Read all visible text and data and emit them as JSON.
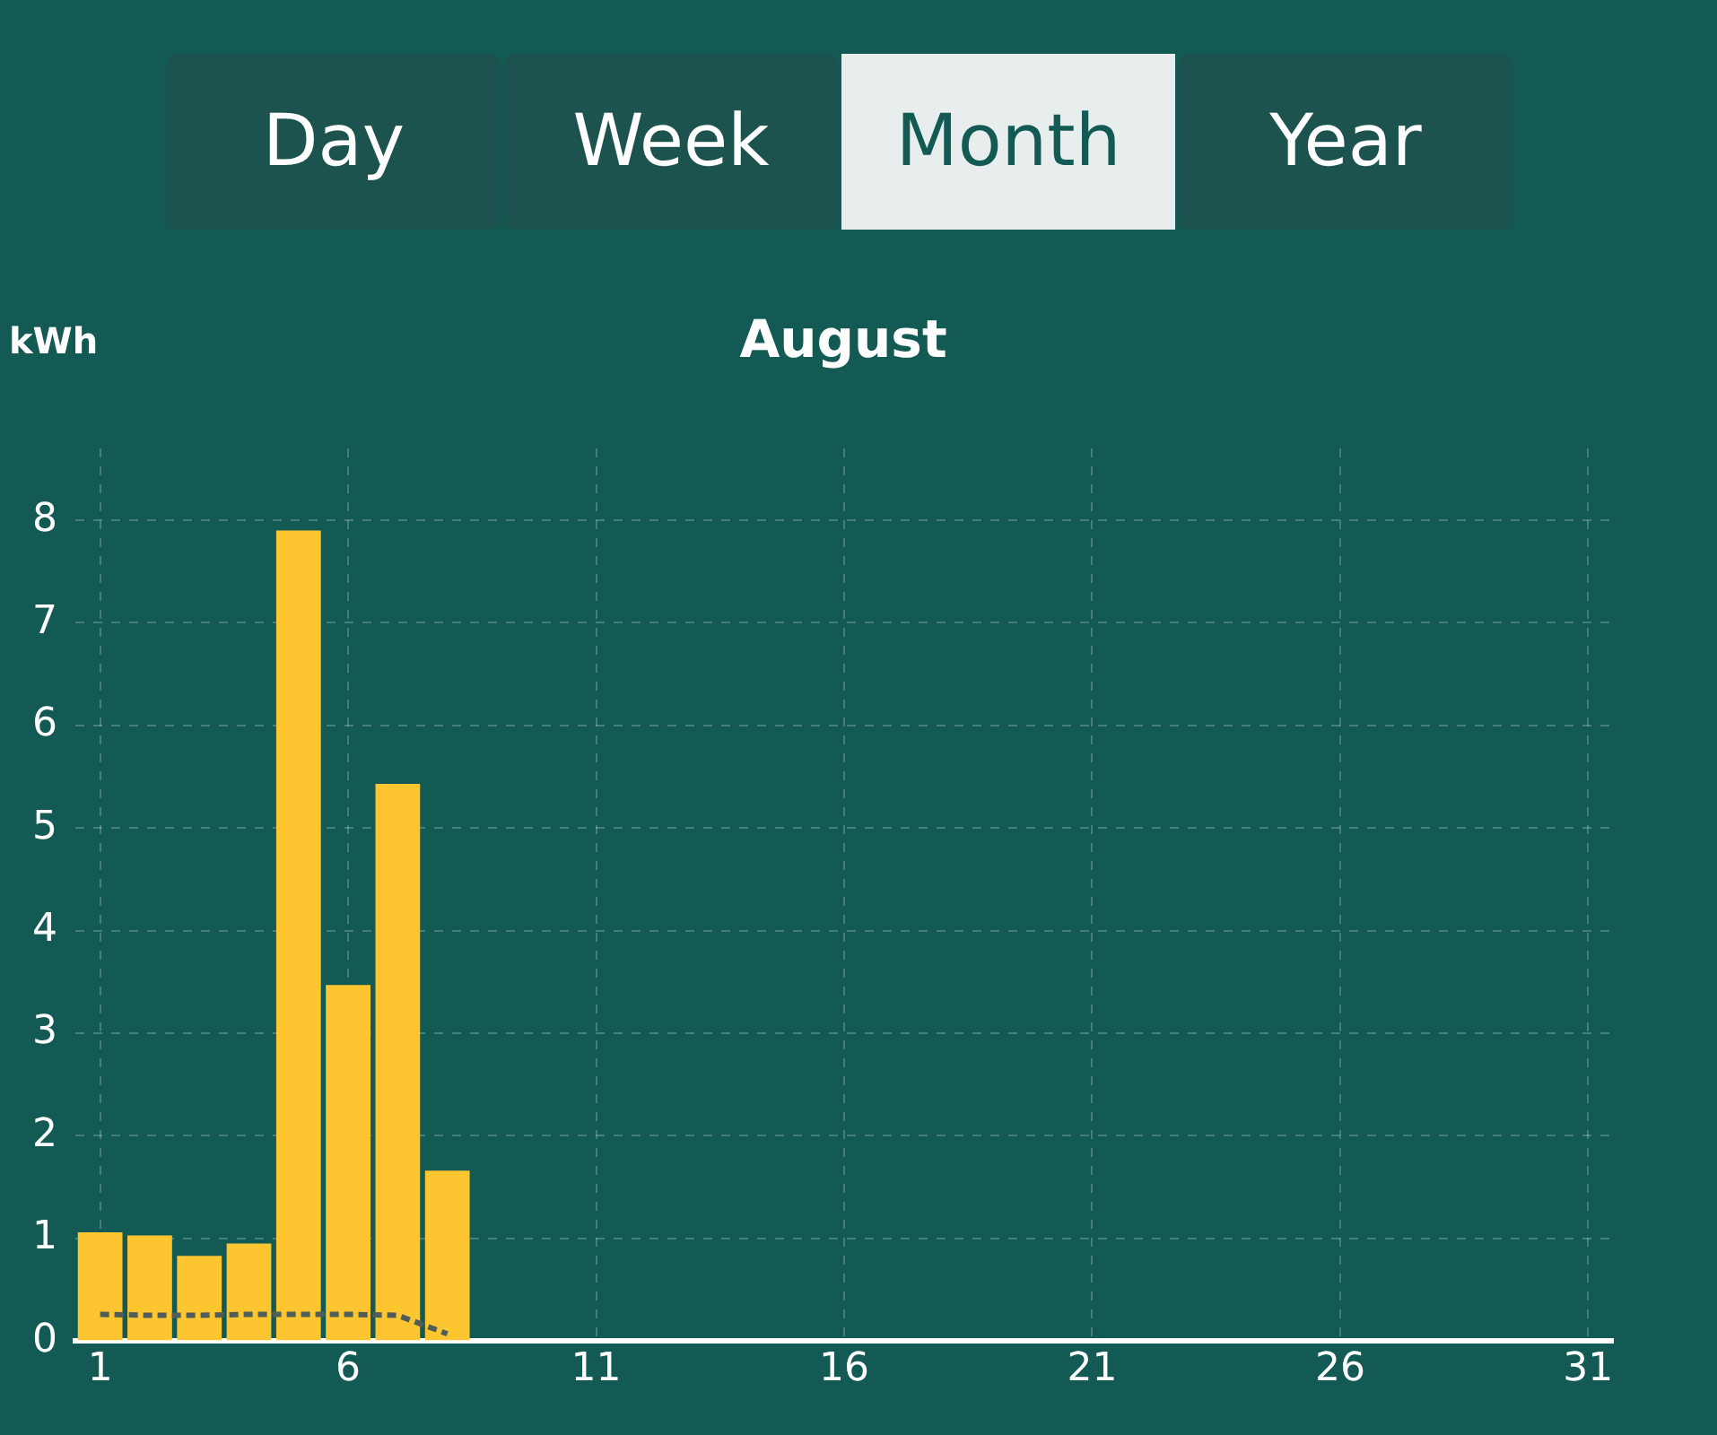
{
  "chart_data": {
    "type": "bar",
    "title": "August",
    "ylabel": "kWh",
    "annotations": [
      "Day",
      "Week",
      "Month",
      "Year"
    ],
    "x": [
      1,
      2,
      3,
      4,
      5,
      6,
      7,
      8
    ],
    "series": [
      {
        "color": "#fdc530",
        "values": [
          1.06,
          1.03,
          0.83,
          0.95,
          7.9,
          3.47,
          5.43,
          1.66
        ]
      },
      {
        "type": "line",
        "color": "#4f5e58",
        "line_style": "dashed",
        "marker": "none",
        "x": [
          1,
          2,
          3,
          4,
          5,
          6,
          7,
          8
        ],
        "values": [
          0.26,
          0.25,
          0.25,
          0.26,
          0.26,
          0.26,
          0.25,
          0.07
        ]
      }
    ],
    "xlim": [
      0.5,
      31.5
    ],
    "xticks": [
      1,
      6,
      11,
      16,
      21,
      26,
      31
    ],
    "ylim": [
      0,
      8.7
    ],
    "yticks": [
      0,
      1,
      2,
      3,
      4,
      5,
      6,
      7,
      8
    ],
    "grid": true,
    "legend": false
  }
}
